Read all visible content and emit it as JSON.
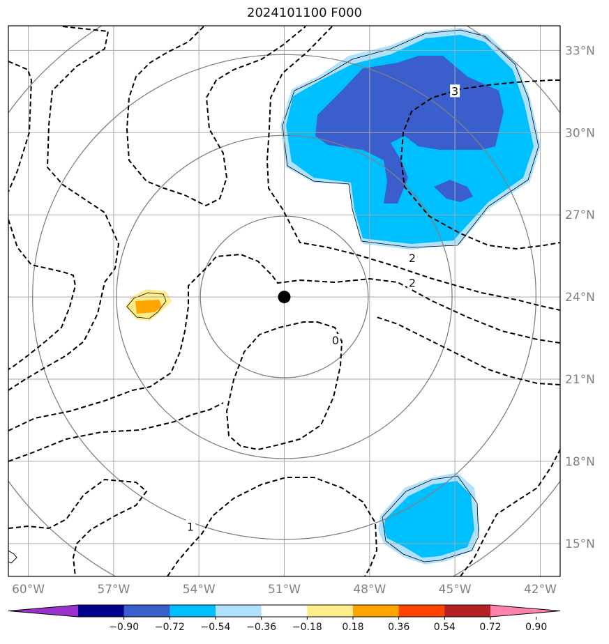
{
  "title": "2024101100 F000",
  "colors": {
    "grid": "#a9a9a9",
    "range_ring": "#808080",
    "contour": "#000000",
    "frame": "#000000",
    "center_marker": "#000000"
  },
  "chart_data": {
    "type": "heatmap",
    "title": "2024101100 F000",
    "projection": "lat-lon map",
    "lon_range": [
      -60.7,
      -41.3
    ],
    "lat_range": [
      13.8,
      33.9
    ],
    "x_ticks": [
      -60,
      -57,
      -54,
      -51,
      -48,
      -45,
      -42
    ],
    "x_tick_labels": [
      "60°W",
      "57°W",
      "54°W",
      "51°W",
      "48°W",
      "45°W",
      "42°W"
    ],
    "y_ticks": [
      15,
      18,
      21,
      24,
      27,
      30,
      33
    ],
    "y_tick_labels": [
      "15°N",
      "18°N",
      "21°N",
      "24°N",
      "27°N",
      "30°N",
      "33°N"
    ],
    "grid": true,
    "center": {
      "lon": -51.0,
      "lat": 24.0
    },
    "range_ring_radii_deg": [
      2.95,
      5.9,
      8.85,
      11.8
    ],
    "contour_labels": [
      {
        "text": "3",
        "lon": -45.0,
        "lat": 31.5
      },
      {
        "text": "2",
        "lon": -46.5,
        "lat": 25.4
      },
      {
        "text": "2",
        "lon": -46.5,
        "lat": 24.5
      },
      {
        "text": "0",
        "lon": -49.2,
        "lat": 22.4
      },
      {
        "text": "1",
        "lon": -54.3,
        "lat": 15.6
      }
    ],
    "colorbar": {
      "ticks": [
        "−0.90",
        "−0.72",
        "−0.54",
        "−0.36",
        "−0.18",
        "0.18",
        "0.36",
        "0.54",
        "0.72",
        "0.90"
      ],
      "colors": [
        "#9932cc",
        "#00008b",
        "#3a5fcd",
        "#00bfff",
        "#b0e2ff",
        "#ffffff",
        "#ffec8b",
        "#ffa500",
        "#ff4500",
        "#b22222",
        "#ff82ab"
      ],
      "extend": "both"
    },
    "shaded_regions": [
      {
        "name": "northeast-anomaly",
        "level_range": "-0.54 to -0.18",
        "core": "-0.72 to -0.54"
      },
      {
        "name": "southeast-anomaly",
        "level_range": "-0.54 to -0.18"
      },
      {
        "name": "west-anomaly",
        "level_range": "0.18 to 0.54"
      }
    ]
  }
}
